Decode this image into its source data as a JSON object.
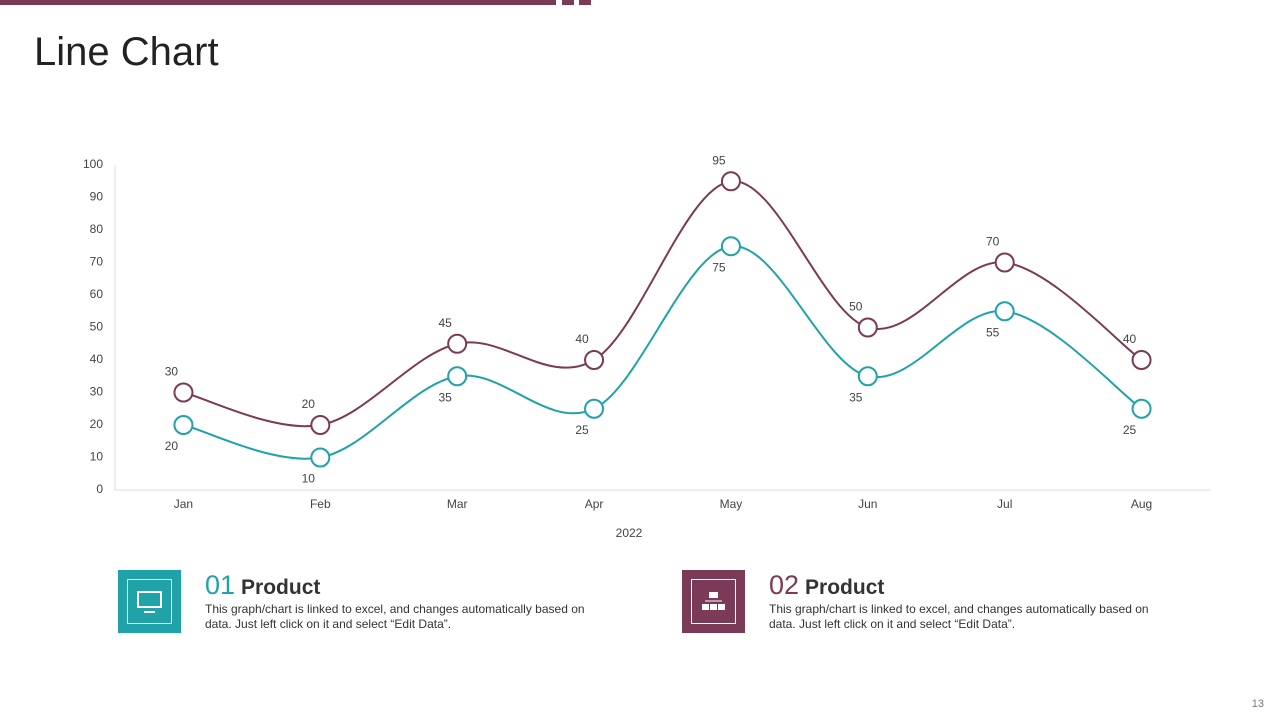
{
  "chart_data": {
    "type": "line",
    "title": "Line Chart",
    "categories": [
      "Jan",
      "Feb",
      "Mar",
      "Apr",
      "May",
      "Jun",
      "Jul",
      "Aug"
    ],
    "x_label": "2022",
    "series": [
      {
        "color": "#7b3a57",
        "values": [
          30,
          20,
          45,
          40,
          95,
          50,
          70,
          40
        ]
      },
      {
        "color": "#1fa3a8",
        "values": [
          20,
          10,
          35,
          25,
          75,
          35,
          55,
          25
        ]
      }
    ],
    "ylim": [
      0,
      100
    ],
    "yticks": [
      0,
      10,
      20,
      30,
      40,
      50,
      60,
      70,
      80,
      90,
      100
    ]
  },
  "cards": [
    {
      "number": "01",
      "title": "Product",
      "text": "This graph/chart is linked to excel, and changes automatically based on data. Just left click on it and select “Edit Data”."
    },
    {
      "number": "02",
      "title": "Product",
      "text": "This graph/chart is linked to excel, and changes automatically based on data. Just left click on it and select “Edit Data”."
    }
  ],
  "page_number": "13"
}
